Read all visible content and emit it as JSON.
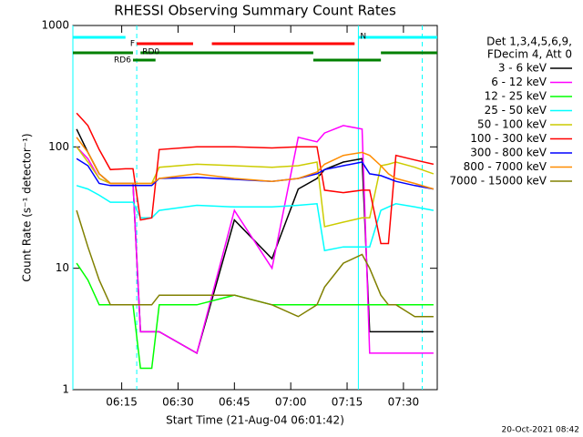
{
  "chart_data": {
    "type": "line",
    "title": "RHESSI Observing Summary Count Rates",
    "xlabel": "Start Time (21-Aug-04 06:01:42)",
    "ylabel": "Count Rate (s⁻¹ detector⁻¹)",
    "footer": "20-Oct-2021 08:42",
    "legend_title": [
      "Det 1,3,4,5,6,9,",
      "FDecim 4, Att 0"
    ],
    "legend": "upper right outside",
    "log_y": true,
    "xlim": [
      "06:02",
      "07:39"
    ],
    "xticks": [
      "06:15",
      "06:30",
      "06:45",
      "07:00",
      "07:15",
      "07:30"
    ],
    "ylim": [
      1,
      1000
    ],
    "yticks": [
      1,
      10,
      100,
      1000
    ],
    "x": [
      "06:03",
      "06:06",
      "06:09",
      "06:12",
      "06:16",
      "06:18",
      "06:20",
      "06:23",
      "06:25",
      "06:35",
      "06:45",
      "06:55",
      "07:02",
      "07:07",
      "07:09",
      "07:14",
      "07:19",
      "07:21",
      "07:24",
      "07:26",
      "07:28",
      "07:33",
      "07:38"
    ],
    "series": [
      {
        "name": "3 - 6 keV",
        "color": "#000000",
        "values": [
          140,
          90,
          60,
          50,
          50,
          50,
          3,
          3,
          3,
          2,
          25,
          12,
          45,
          55,
          65,
          75,
          80,
          3,
          3,
          3,
          3,
          3,
          3
        ]
      },
      {
        "name": "6 - 12 keV",
        "color": "#ff00ff",
        "values": [
          100,
          80,
          55,
          50,
          50,
          50,
          3,
          3,
          3,
          2,
          30,
          10,
          120,
          110,
          130,
          150,
          140,
          2,
          2,
          2,
          2,
          2,
          2
        ]
      },
      {
        "name": "12 - 25 keV",
        "color": "#00ff00",
        "values": [
          11,
          8,
          5,
          5,
          5,
          5,
          1.5,
          1.5,
          5,
          5,
          6,
          5,
          5,
          5,
          5,
          5,
          5,
          5,
          5,
          5,
          5,
          5,
          5
        ]
      },
      {
        "name": "25 - 50 keV",
        "color": "#00ffff",
        "values": [
          48,
          45,
          40,
          35,
          35,
          35,
          26,
          26,
          30,
          33,
          32,
          32,
          33,
          34,
          14,
          15,
          15,
          15,
          30,
          32,
          34,
          32,
          30
        ]
      },
      {
        "name": "50 - 100 keV",
        "color": "#cccc00",
        "values": [
          100,
          75,
          55,
          50,
          50,
          50,
          50,
          50,
          68,
          72,
          70,
          68,
          70,
          75,
          22,
          24,
          26,
          26,
          70,
          72,
          75,
          68,
          60
        ]
      },
      {
        "name": "100 - 300 keV",
        "color": "#ff0000",
        "values": [
          190,
          150,
          95,
          65,
          66,
          66,
          25,
          26,
          95,
          100,
          100,
          98,
          100,
          100,
          44,
          42,
          44,
          44,
          16,
          16,
          85,
          78,
          72
        ]
      },
      {
        "name": "300 - 800 keV",
        "color": "#0000ff",
        "values": [
          80,
          70,
          50,
          48,
          48,
          48,
          48,
          48,
          55,
          56,
          54,
          52,
          55,
          60,
          65,
          70,
          75,
          60,
          58,
          55,
          52,
          48,
          45
        ]
      },
      {
        "name": "800 - 7000 keV",
        "color": "#ff8c00",
        "values": [
          120,
          90,
          60,
          50,
          50,
          50,
          50,
          50,
          55,
          60,
          55,
          52,
          55,
          62,
          72,
          85,
          90,
          85,
          70,
          60,
          55,
          50,
          45
        ]
      },
      {
        "name": "7000 - 15000 keV",
        "color": "#808000",
        "values": [
          30,
          15,
          8,
          5,
          5,
          5,
          5,
          5,
          6,
          6,
          6,
          5,
          4,
          5,
          7,
          11,
          13,
          10,
          6,
          5,
          5,
          4,
          4
        ]
      }
    ],
    "flags": [
      {
        "label": "N",
        "color": "#00ffff",
        "segments": [
          [
            "06:02",
            "06:16"
          ],
          [
            "07:18",
            "07:39"
          ]
        ]
      },
      {
        "label": "F",
        "color": "#ff0000",
        "segments": [
          [
            "06:19",
            "06:34"
          ],
          [
            "06:39",
            "07:17"
          ]
        ]
      },
      {
        "label": "RD0",
        "color": "#008000",
        "segments": [
          [
            "06:02",
            "06:18"
          ],
          [
            "06:20",
            "07:06"
          ],
          [
            "07:24",
            "07:39"
          ]
        ]
      },
      {
        "label": "RD6",
        "color": "#008000",
        "segments": [
          [
            "06:18",
            "06:24"
          ],
          [
            "07:06",
            "07:24"
          ]
        ]
      }
    ],
    "vlines": [
      {
        "x": "06:02",
        "style": "solid",
        "color": "#00ffff"
      },
      {
        "x": "06:19",
        "style": "dashed",
        "color": "#00ffff"
      },
      {
        "x": "07:18",
        "style": "solid",
        "color": "#00ffff"
      },
      {
        "x": "07:35",
        "style": "dashed",
        "color": "#00ffff"
      }
    ]
  }
}
